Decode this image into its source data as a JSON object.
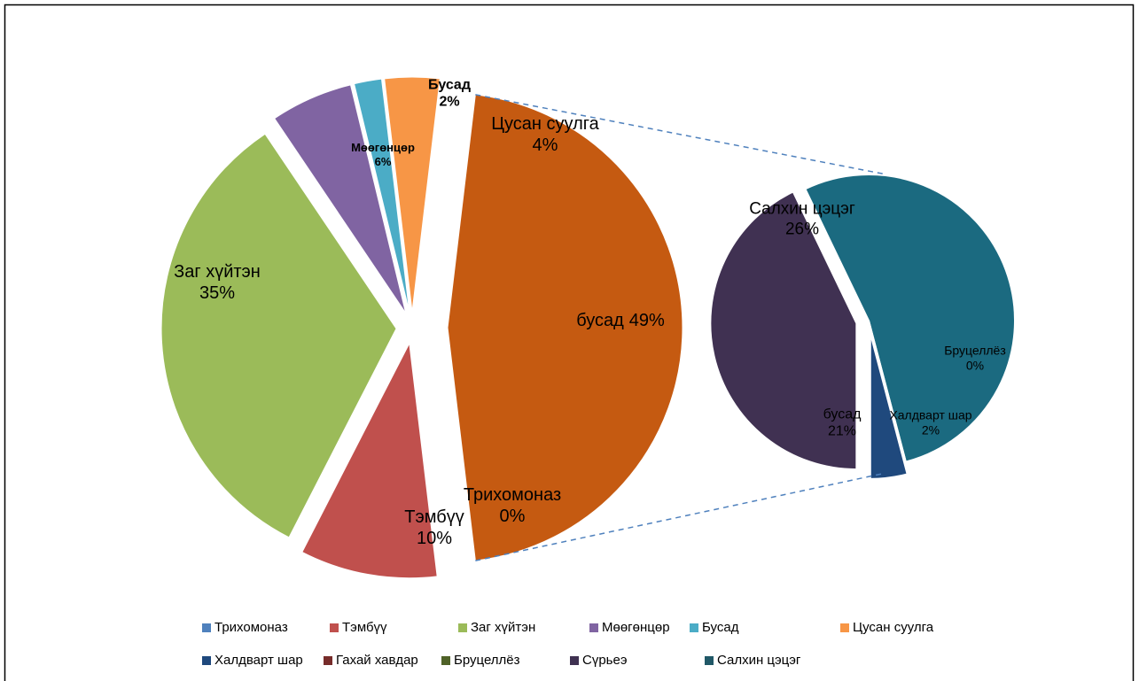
{
  "chart_data": {
    "type": "pie-of-pie",
    "main": [
      {
        "name": "бусад",
        "value": 49,
        "value_label": "49%",
        "color": "#c55a11"
      },
      {
        "name": "Трихомоназ",
        "value": 0,
        "value_label": "0%",
        "color": "#4f81bd"
      },
      {
        "name": "Тэмбүү",
        "value": 10,
        "value_label": "10%",
        "color": "#c0504d"
      },
      {
        "name": "Заг хүйтэн",
        "value": 35,
        "value_label": "35%",
        "color": "#9bbb59"
      },
      {
        "name": "Мөөгөнцөр",
        "value": 6,
        "value_label": "6%",
        "color": "#8064a2"
      },
      {
        "name": "Бусад",
        "value": 2,
        "value_label": "2%",
        "color": "#4bacc6"
      },
      {
        "name": "Цусан суулга",
        "value": 4,
        "value_label": "4%",
        "color": "#f79646"
      }
    ],
    "secondary": [
      {
        "name": "Салхин цэцэг",
        "value": 26,
        "value_label": "26%",
        "color": "#1b6a80"
      },
      {
        "name": "Бруцеллёз",
        "value": 0,
        "value_label": "0%",
        "color": "#4f6228"
      },
      {
        "name": "Халдварт шар",
        "value": 2,
        "value_label": "2%",
        "color": "#1f497d"
      },
      {
        "name": "бусад",
        "value": 21,
        "value_label": "21%",
        "color": "#403152"
      }
    ],
    "legend": [
      {
        "name": "Трихомоназ",
        "color": "#4f81bd"
      },
      {
        "name": "Тэмбүү",
        "color": "#c0504d"
      },
      {
        "name": "Заг хүйтэн",
        "color": "#9bbb59"
      },
      {
        "name": "Мөөгөнцөр",
        "color": "#8064a2"
      },
      {
        "name": "Бусад",
        "color": "#4bacc6"
      },
      {
        "name": "Цусан суулга",
        "color": "#f79646"
      },
      {
        "name": "Халдварт шар",
        "color": "#1f497d"
      },
      {
        "name": "Гахай хавдар",
        "color": "#772c2a"
      },
      {
        "name": "Бруцеллёз",
        "color": "#4f6228"
      },
      {
        "name": "Сүрьеэ",
        "color": "#3f3151"
      },
      {
        "name": "Салхин цэцэг",
        "color": "#205867"
      }
    ]
  }
}
